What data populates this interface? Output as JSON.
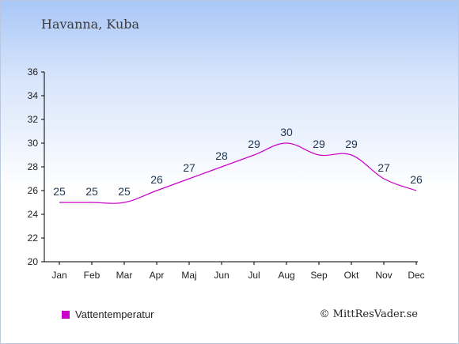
{
  "header": {
    "location": "Havanna, Kuba"
  },
  "legend": {
    "label": "Vattentemperatur",
    "color": "#cc00cc"
  },
  "footer": {
    "copyright": "© MittResVader.se"
  },
  "chart_data": {
    "type": "line",
    "categories": [
      "Jan",
      "Feb",
      "Mar",
      "Apr",
      "Maj",
      "Jun",
      "Jul",
      "Aug",
      "Sep",
      "Okt",
      "Nov",
      "Dec"
    ],
    "series": [
      {
        "name": "Vattentemperatur",
        "color": "#cc00cc",
        "values": [
          25,
          25,
          25,
          26,
          27,
          28,
          29,
          30,
          29,
          29,
          27,
          26
        ]
      }
    ],
    "data_labels": [
      "25",
      "25",
      "25",
      "26",
      "27",
      "28",
      "29",
      "30",
      "29",
      "29",
      "27",
      "26"
    ],
    "yticks": [
      20,
      22,
      24,
      26,
      28,
      30,
      32,
      34,
      36
    ],
    "ylim": [
      20,
      36
    ],
    "grid": false,
    "legend_position": "bottom-left"
  }
}
